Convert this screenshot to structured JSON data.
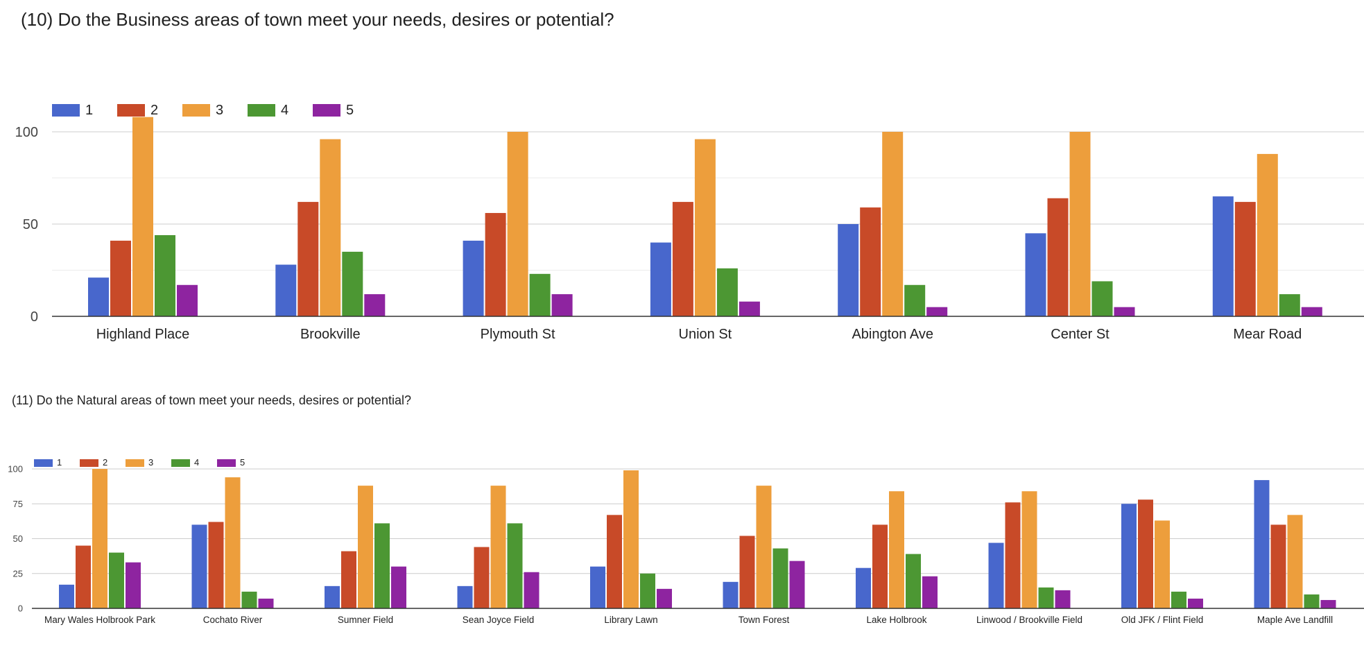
{
  "charts": [
    {
      "id": "chart1",
      "type": "bar",
      "title": "(10) Do the Business areas of town meet your needs, desires or potential?",
      "categories": [
        "Highland Place",
        "Brookville",
        "Plymouth St",
        "Union St",
        "Abington Ave",
        "Center St",
        "Mear Road"
      ],
      "series": [
        {
          "name": "1",
          "color": "#4867cc",
          "values": [
            21,
            28,
            41,
            40,
            50,
            45,
            65
          ]
        },
        {
          "name": "2",
          "color": "#c84a28",
          "values": [
            41,
            62,
            56,
            62,
            59,
            64,
            62
          ]
        },
        {
          "name": "3",
          "color": "#ed9e3c",
          "values": [
            108,
            96,
            100,
            96,
            100,
            100,
            88
          ]
        },
        {
          "name": "4",
          "color": "#4c9733",
          "values": [
            44,
            35,
            23,
            26,
            17,
            19,
            12
          ]
        },
        {
          "name": "5",
          "color": "#8e24a0",
          "values": [
            17,
            12,
            12,
            8,
            5,
            5,
            5
          ]
        }
      ],
      "ylim": [
        0,
        100
      ],
      "yticks": [
        0,
        50,
        100
      ],
      "xlabel": "",
      "ylabel": ""
    },
    {
      "id": "chart2",
      "type": "bar",
      "title": "(11) Do the Natural areas of town meet your needs, desires or potential?",
      "categories": [
        "Mary Wales Holbrook Park",
        "Cochato River",
        "Sumner Field",
        "Sean Joyce Field",
        "Library Lawn",
        "Town Forest",
        "Lake Holbrook",
        "Linwood / Brookville Field",
        "Old JFK / Flint Field",
        "Maple Ave Landfill"
      ],
      "series": [
        {
          "name": "1",
          "color": "#4867cc",
          "values": [
            17,
            60,
            16,
            16,
            30,
            19,
            29,
            47,
            75,
            92
          ]
        },
        {
          "name": "2",
          "color": "#c84a28",
          "values": [
            45,
            62,
            41,
            44,
            67,
            52,
            60,
            76,
            78,
            60
          ]
        },
        {
          "name": "3",
          "color": "#ed9e3c",
          "values": [
            100,
            94,
            88,
            88,
            99,
            88,
            84,
            84,
            63,
            67
          ]
        },
        {
          "name": "4",
          "color": "#4c9733",
          "values": [
            40,
            12,
            61,
            61,
            25,
            43,
            39,
            15,
            12,
            10
          ]
        },
        {
          "name": "5",
          "color": "#8e24a0",
          "values": [
            33,
            7,
            30,
            26,
            14,
            34,
            23,
            13,
            7,
            6
          ]
        }
      ],
      "ylim": [
        0,
        100
      ],
      "yticks": [
        0,
        25,
        50,
        75,
        100
      ],
      "xlabel": "",
      "ylabel": ""
    }
  ]
}
